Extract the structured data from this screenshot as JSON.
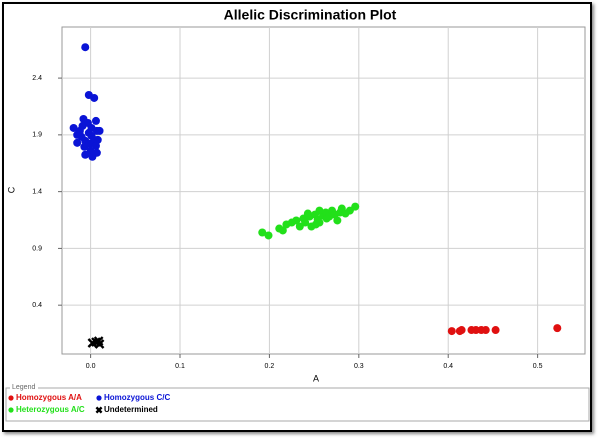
{
  "chart_data": {
    "type": "scatter",
    "title": "Allelic Discrimination Plot",
    "xlabel": "A",
    "ylabel": "C",
    "xlim": [
      -0.032,
      0.553
    ],
    "ylim": [
      -0.03,
      2.85
    ],
    "xticks": [
      {
        "value": 0,
        "label": "0.0"
      },
      0.1,
      0.2,
      0.3,
      0.4,
      0.5
    ],
    "yticks": [
      0.4,
      0.9,
      1.4,
      1.9,
      2.4
    ],
    "grid": true,
    "legend_title": "Legend",
    "legend": "bottom",
    "series": [
      {
        "name": "Homozygous A/A",
        "color": "#e01010",
        "marker": "circle",
        "x": [
          0.404,
          0.413,
          0.415,
          0.426,
          0.431,
          0.437,
          0.442,
          0.453,
          0.522
        ],
        "values": [
          0.172,
          0.172,
          0.181,
          0.181,
          0.181,
          0.181,
          0.181,
          0.181,
          0.198
        ]
      },
      {
        "name": "Homozygous C/C",
        "color": "#0a14d6",
        "marker": "circle",
        "x": [
          -0.006,
          -0.002,
          0.004,
          -0.008,
          -0.019,
          -0.012,
          -0.003,
          0.001,
          0.006,
          0.007,
          -0.01,
          -0.006,
          0.001,
          0.004,
          -0.015,
          -0.007,
          -0.001,
          0.006,
          0.0,
          0.007,
          -0.006,
          0.002,
          -0.015,
          0.01,
          0.008,
          -0.009,
          -0.002
        ],
        "values": [
          2.672,
          2.251,
          2.225,
          2.04,
          1.961,
          1.935,
          2.005,
          1.961,
          2.023,
          1.935,
          1.882,
          1.847,
          1.891,
          1.856,
          1.83,
          1.795,
          1.821,
          1.804,
          1.76,
          1.742,
          1.725,
          1.707,
          1.9,
          1.935,
          1.856,
          1.979,
          1.918
        ]
      },
      {
        "name": "Heterozygous A/C",
        "color": "#22e01a",
        "marker": "circle",
        "x": [
          0.192,
          0.199,
          0.211,
          0.215,
          0.219,
          0.225,
          0.23,
          0.234,
          0.238,
          0.24,
          0.245,
          0.247,
          0.251,
          0.254,
          0.256,
          0.26,
          0.263,
          0.264,
          0.267,
          0.27,
          0.273,
          0.276,
          0.279,
          0.281,
          0.285,
          0.29,
          0.296,
          0.256,
          0.243,
          0.252
        ],
        "values": [
          1.04,
          1.014,
          1.075,
          1.058,
          1.111,
          1.128,
          1.146,
          1.093,
          1.163,
          1.128,
          1.181,
          1.093,
          1.198,
          1.154,
          1.128,
          1.189,
          1.216,
          1.163,
          1.181,
          1.233,
          1.198,
          1.146,
          1.216,
          1.251,
          1.207,
          1.233,
          1.268,
          1.233,
          1.207,
          1.111
        ]
      },
      {
        "name": "Undetermined",
        "color": "#000000",
        "marker": "x",
        "x": [
          0.002,
          0.006,
          0.009,
          0.01
        ],
        "values": [
          0.067,
          0.075,
          0.084,
          0.058
        ]
      }
    ]
  }
}
